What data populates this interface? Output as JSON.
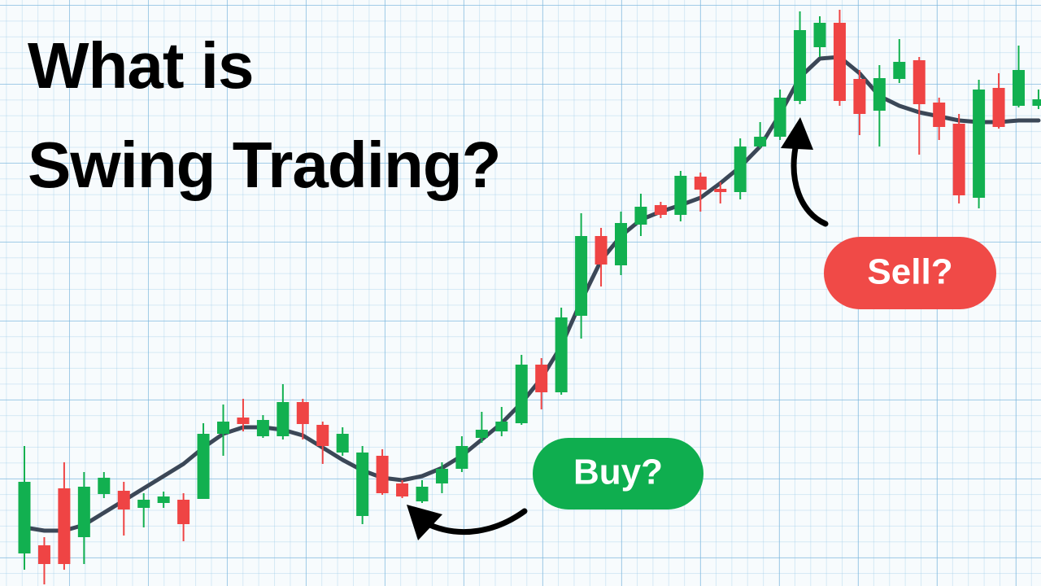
{
  "chart_data": {
    "type": "candlestick",
    "title_lines": [
      "What is",
      "Swing Trading?"
    ],
    "open": [
      40,
      50,
      120,
      60,
      113,
      117,
      96,
      102,
      106,
      107,
      187,
      207,
      184,
      184,
      226,
      198,
      164,
      86,
      160,
      126,
      104,
      126,
      144,
      182,
      190,
      200,
      272,
      238,
      332,
      430,
      394,
      444,
      468,
      456,
      503,
      488,
      484,
      540,
      552,
      596,
      662,
      692,
      623,
      584,
      623,
      646,
      594,
      568,
      477,
      612,
      590,
      590
    ],
    "high": [
      172,
      60,
      152,
      140,
      140,
      128,
      114,
      116,
      114,
      200,
      223,
      230,
      210,
      248,
      230,
      202,
      195,
      172,
      168,
      130,
      130,
      152,
      184,
      214,
      220,
      284,
      280,
      342,
      458,
      440,
      460,
      482,
      472,
      510,
      508,
      496,
      550,
      570,
      610,
      706,
      700,
      708,
      634,
      640,
      672,
      650,
      600,
      580,
      622,
      630,
      664,
      610
    ],
    "low": [
      20,
      2,
      20,
      27,
      108,
      62,
      72,
      96,
      55,
      107,
      160,
      190,
      182,
      180,
      180,
      150,
      160,
      76,
      112,
      108,
      102,
      114,
      140,
      176,
      184,
      198,
      217,
      235,
      304,
      368,
      382,
      430,
      452,
      448,
      460,
      470,
      475,
      538,
      548,
      592,
      650,
      590,
      554,
      540,
      618,
      530,
      548,
      470,
      464,
      562,
      588,
      586
    ],
    "close": [
      128,
      27,
      27,
      122,
      133,
      94,
      106,
      110,
      76,
      187,
      202,
      199,
      204,
      226,
      199,
      172,
      187,
      164,
      114,
      110,
      122,
      144,
      172,
      192,
      202,
      272,
      238,
      330,
      430,
      395,
      446,
      466,
      456,
      504,
      487,
      484,
      540,
      552,
      600,
      683,
      692,
      596,
      580,
      624,
      644,
      592,
      564,
      480,
      610,
      564,
      634,
      598
    ],
    "trend": [
      72,
      68,
      68,
      75,
      90,
      105,
      120,
      135,
      150,
      170,
      187,
      195,
      195,
      192,
      185,
      170,
      155,
      142,
      133,
      130,
      135,
      145,
      160,
      180,
      200,
      225,
      255,
      295,
      350,
      400,
      430,
      450,
      460,
      468,
      477,
      495,
      515,
      540,
      580,
      625,
      648,
      650,
      630,
      602,
      590,
      582,
      577,
      572,
      570,
      570,
      572,
      572
    ],
    "up_color": "#12b050",
    "down_color": "#ef4444",
    "trend_color": "#3b4757",
    "ylim": [
      0,
      720
    ],
    "annotations": [
      {
        "text": "Buy?",
        "color": "#0fae4f"
      },
      {
        "text": "Sell?",
        "color": "#f04a47"
      }
    ]
  }
}
